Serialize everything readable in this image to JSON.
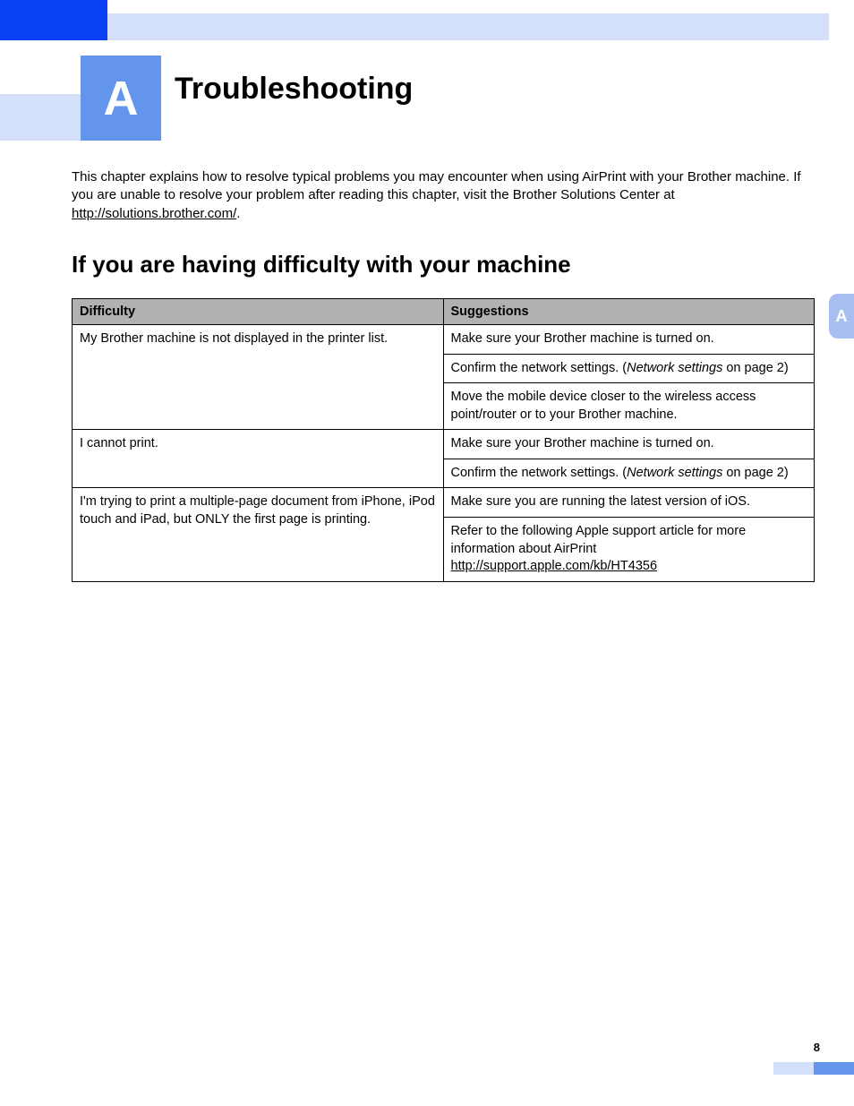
{
  "colors": {
    "brand_blue": "#0a41f5",
    "mid_blue": "#6495ed",
    "light_blue": "#d4e0fa",
    "tab_blue": "#a7bff0",
    "header_gray": "#b1b1b1",
    "text": "#000000",
    "white": "#ffffff"
  },
  "chapter_letter": "A",
  "page_title": "Troubleshooting",
  "intro": {
    "text_before_link": "This chapter explains how to resolve typical problems you may encounter when using AirPrint with your Brother machine. If you are unable to resolve your problem after reading this chapter, visit the Brother Solutions Center at ",
    "link_text": "http://solutions.brother.com/",
    "text_after_link": "."
  },
  "section_title": "If you are having difficulty with your machine",
  "side_tab": "A",
  "page_number": "8",
  "table": {
    "type": "table",
    "columns": [
      "Difficulty",
      "Suggestions"
    ],
    "col_widths_pct": [
      50,
      50
    ],
    "header_bg": "#b1b1b1",
    "border_color": "#000000",
    "font_size": 14.5,
    "rows": [
      {
        "difficulty": "My Brother machine is not displayed in the printer list.",
        "suggestions": [
          {
            "plain": "Make sure your Brother machine is turned on."
          },
          {
            "before_em": "Confirm the network settings. (",
            "em": "Network settings",
            "after_em": " on page 2)"
          },
          {
            "plain": "Move the mobile device closer to the wireless access point/router or to your Brother machine."
          }
        ]
      },
      {
        "difficulty": "I cannot print.",
        "suggestions": [
          {
            "plain": "Make sure your Brother machine is turned on."
          },
          {
            "before_em": "Confirm the network settings. (",
            "em": "Network settings",
            "after_em": " on page 2)"
          }
        ]
      },
      {
        "difficulty": "I'm trying to print a multiple-page document from iPhone, iPod touch and iPad, but ONLY the first page is printing.",
        "suggestions": [
          {
            "plain": "Make sure you are running the latest version of iOS."
          },
          {
            "line1": "Refer to the following Apple support article for more information about AirPrint",
            "link": "http://support.apple.com/kb/HT4356"
          }
        ]
      }
    ]
  }
}
